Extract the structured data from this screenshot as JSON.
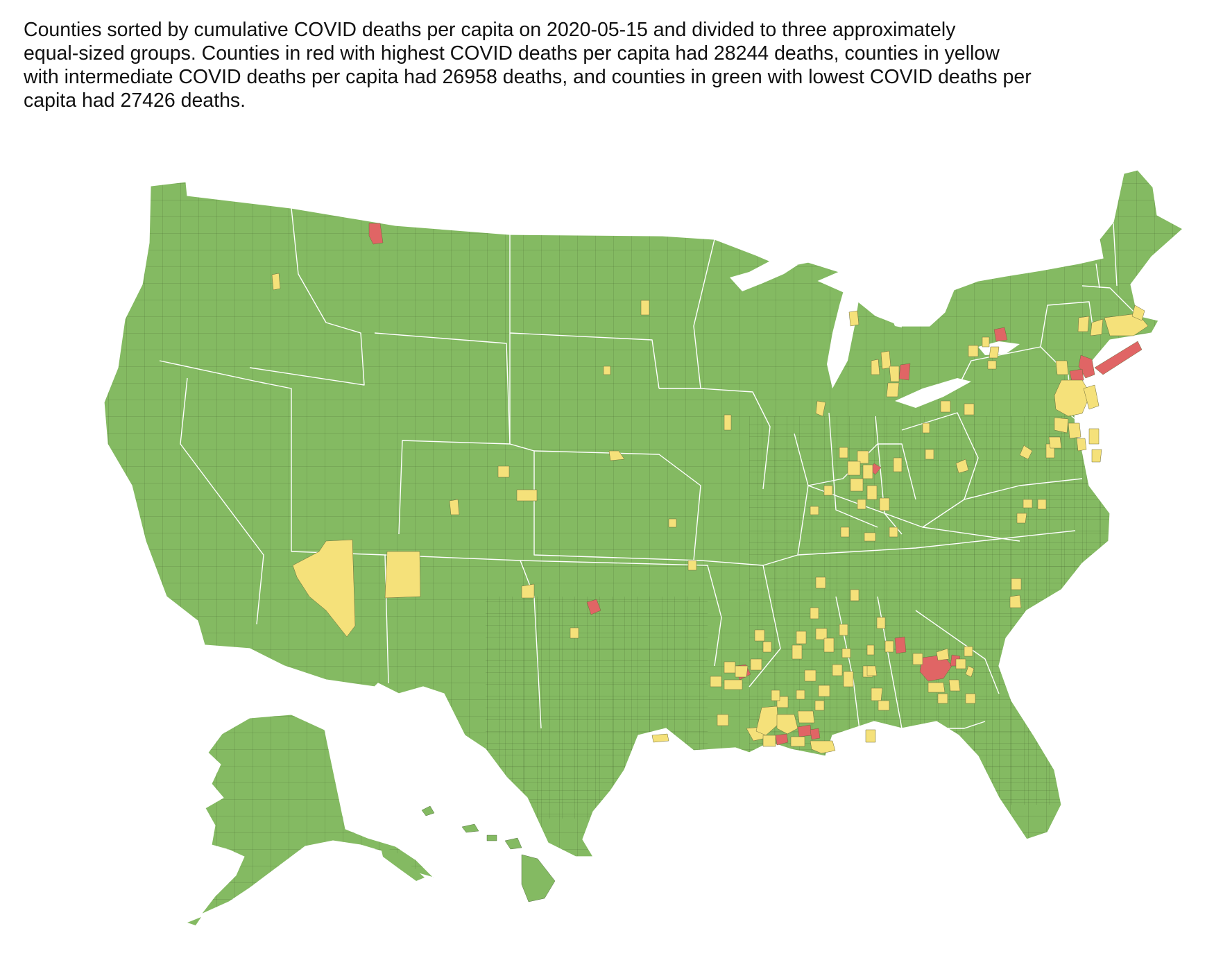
{
  "caption": {
    "line1": "Counties sorted by cumulative COVID deaths per capita on 2020-05-15 and divided to three approximately",
    "line2": "equal-sized groups. Counties in red with highest COVID deaths per capita had 28244 deaths, counties in yellow",
    "line3": "with intermediate COVID deaths per capita had 26958 deaths, and counties in green with lowest COVID deaths per",
    "line4": "capita had 27426 deaths."
  },
  "colors": {
    "highest": "#e06565",
    "intermediate": "#f5e17a",
    "lowest": "#84ba62",
    "state_border": "#ffffff",
    "county_border": "#3d5a2a"
  },
  "groups": [
    {
      "group": "highest",
      "color_name": "red",
      "deaths": 28244
    },
    {
      "group": "intermediate",
      "color_name": "yellow",
      "deaths": 26958
    },
    {
      "group": "lowest",
      "color_name": "green",
      "deaths": 27426
    }
  ]
}
